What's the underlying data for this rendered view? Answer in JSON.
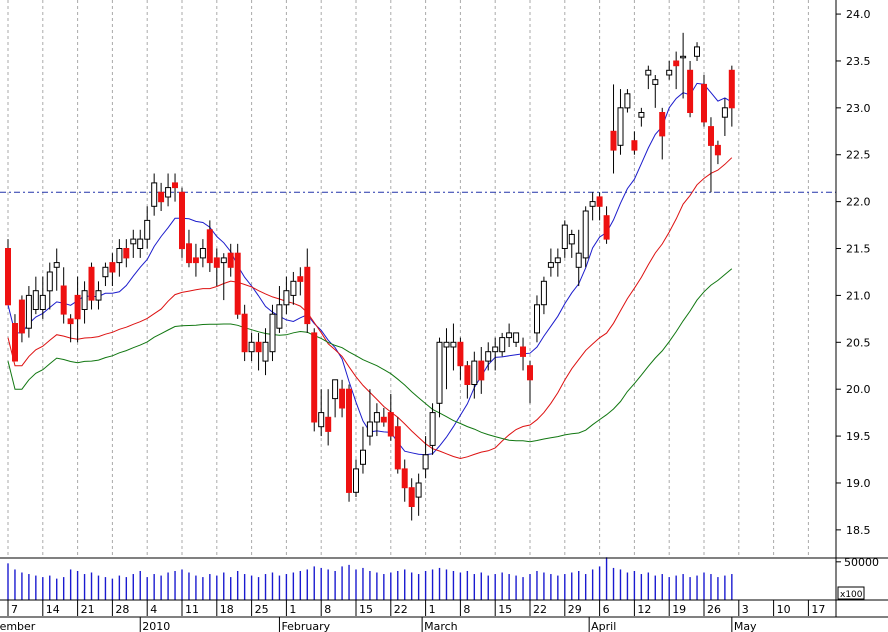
{
  "chart_data": {
    "type": "candlestick",
    "price_axis": {
      "ticks": [
        "18.5",
        "19.0",
        "19.5",
        "20.0",
        "20.5",
        "21.0",
        "21.5",
        "22.0",
        "22.5",
        "23.0",
        "23.5",
        "24.0"
      ],
      "range": [
        18.2,
        24.15
      ]
    },
    "volume_axis": {
      "tick_label": "50000",
      "multiplier_label": "x100",
      "max": 55000
    },
    "day_labels": [
      {
        "label": "7",
        "i": 0
      },
      {
        "label": "14",
        "i": 5
      },
      {
        "label": "21",
        "i": 10
      },
      {
        "label": "28",
        "i": 15
      },
      {
        "label": "4",
        "i": 20
      },
      {
        "label": "11",
        "i": 25
      },
      {
        "label": "18",
        "i": 30
      },
      {
        "label": "25",
        "i": 35
      },
      {
        "label": "1",
        "i": 40
      },
      {
        "label": "8",
        "i": 45
      },
      {
        "label": "15",
        "i": 50
      },
      {
        "label": "22",
        "i": 55
      },
      {
        "label": "1",
        "i": 60
      },
      {
        "label": "8",
        "i": 65
      },
      {
        "label": "15",
        "i": 70
      },
      {
        "label": "22",
        "i": 75
      },
      {
        "label": "29",
        "i": 80
      },
      {
        "label": "6",
        "i": 85
      },
      {
        "label": "12",
        "i": 90
      },
      {
        "label": "19",
        "i": 95
      },
      {
        "label": "26",
        "i": 100
      },
      {
        "label": "3",
        "i": 105
      },
      {
        "label": "10",
        "i": 110
      },
      {
        "label": "17",
        "i": 115
      }
    ],
    "month_labels": [
      {
        "label": "ember",
        "i": -1.5
      },
      {
        "label": "2010",
        "i": 19
      },
      {
        "label": "February",
        "i": 39
      },
      {
        "label": "March",
        "i": 59.5
      },
      {
        "label": "April",
        "i": 83.5
      },
      {
        "label": "May",
        "i": 104
      }
    ],
    "reference_line": {
      "value": 22.1,
      "color": "#2233aa"
    },
    "candles": [
      [
        21.5,
        20.9,
        21.6,
        20.9
      ],
      [
        20.7,
        20.3,
        20.8,
        20.3
      ],
      [
        20.95,
        20.6,
        21.0,
        20.5
      ],
      [
        20.65,
        21.0,
        21.1,
        20.55
      ],
      [
        20.85,
        21.05,
        21.2,
        20.8
      ],
      [
        20.85,
        21.0,
        21.2,
        20.75
      ],
      [
        21.05,
        21.25,
        21.35,
        20.85
      ],
      [
        21.3,
        21.35,
        21.5,
        21.05
      ],
      [
        21.1,
        20.8,
        21.3,
        20.7
      ],
      [
        20.75,
        20.7,
        20.8,
        20.5
      ],
      [
        21.0,
        20.75,
        21.2,
        20.5
      ],
      [
        20.85,
        21.05,
        21.15,
        20.7
      ],
      [
        21.3,
        20.95,
        21.35,
        20.85
      ],
      [
        20.95,
        21.05,
        21.15,
        20.85
      ],
      [
        21.2,
        21.3,
        21.35,
        21.1
      ],
      [
        21.35,
        21.25,
        21.45,
        21.1
      ],
      [
        21.35,
        21.5,
        21.6,
        21.2
      ],
      [
        21.5,
        21.4,
        21.6,
        21.3
      ],
      [
        21.55,
        21.6,
        21.7,
        21.4
      ],
      [
        21.5,
        21.6,
        21.7,
        21.4
      ],
      [
        21.6,
        21.8,
        21.95,
        21.5
      ],
      [
        21.95,
        22.2,
        22.3,
        21.85
      ],
      [
        22.1,
        22.0,
        22.2,
        21.9
      ],
      [
        22.05,
        22.15,
        22.3,
        21.95
      ],
      [
        22.2,
        22.15,
        22.3,
        22.0
      ],
      [
        22.1,
        21.5,
        22.15,
        21.4
      ],
      [
        21.55,
        21.35,
        21.7,
        21.3
      ],
      [
        21.4,
        21.35,
        21.55,
        21.2
      ],
      [
        21.4,
        21.5,
        21.6,
        21.3
      ],
      [
        21.7,
        21.35,
        21.8,
        21.25
      ],
      [
        21.4,
        21.3,
        21.5,
        21.1
      ],
      [
        21.35,
        21.4,
        21.45,
        20.95
      ],
      [
        21.45,
        21.3,
        21.55,
        21.2
      ],
      [
        21.45,
        20.8,
        21.55,
        20.75
      ],
      [
        20.8,
        20.4,
        20.9,
        20.3
      ],
      [
        20.4,
        20.5,
        20.6,
        20.3
      ],
      [
        20.5,
        20.4,
        20.6,
        20.2
      ],
      [
        20.3,
        20.5,
        20.65,
        20.15
      ],
      [
        20.4,
        20.8,
        20.9,
        20.3
      ],
      [
        20.65,
        20.9,
        21.1,
        20.6
      ],
      [
        20.9,
        21.05,
        21.2,
        20.8
      ],
      [
        21.0,
        21.15,
        21.25,
        20.9
      ],
      [
        21.2,
        21.15,
        21.3,
        21.0
      ],
      [
        21.3,
        20.7,
        21.5,
        20.6
      ],
      [
        20.6,
        19.65,
        20.65,
        19.55
      ],
      [
        19.6,
        19.75,
        20.0,
        19.5
      ],
      [
        19.7,
        19.55,
        20.0,
        19.4
      ],
      [
        19.9,
        20.1,
        20.1,
        19.7
      ],
      [
        20.0,
        19.8,
        20.1,
        19.7
      ],
      [
        20.0,
        18.9,
        20.05,
        18.8
      ],
      [
        18.9,
        19.15,
        19.25,
        18.85
      ],
      [
        19.2,
        19.35,
        19.6,
        19.1
      ],
      [
        19.5,
        19.65,
        20.0,
        19.4
      ],
      [
        19.65,
        19.75,
        19.85,
        19.5
      ],
      [
        19.7,
        19.65,
        19.8,
        19.6
      ],
      [
        19.75,
        19.5,
        19.95,
        19.45
      ],
      [
        19.6,
        19.15,
        19.7,
        19.1
      ],
      [
        19.15,
        18.95,
        19.25,
        18.8
      ],
      [
        18.95,
        18.75,
        19.05,
        18.6
      ],
      [
        18.85,
        19.0,
        19.1,
        18.65
      ],
      [
        19.15,
        19.3,
        19.5,
        19.05
      ],
      [
        19.4,
        19.75,
        19.85,
        19.3
      ],
      [
        19.85,
        20.5,
        20.55,
        19.7
      ],
      [
        20.45,
        20.5,
        20.65,
        20.0
      ],
      [
        20.45,
        20.5,
        20.7,
        20.2
      ],
      [
        20.5,
        20.25,
        20.55,
        20.1
      ],
      [
        20.25,
        20.05,
        20.3,
        19.9
      ],
      [
        20.05,
        20.3,
        20.4,
        19.9
      ],
      [
        20.3,
        20.1,
        20.45,
        19.95
      ],
      [
        20.3,
        20.4,
        20.5,
        20.2
      ],
      [
        20.4,
        20.45,
        20.55,
        20.2
      ],
      [
        20.4,
        20.55,
        20.6,
        20.35
      ],
      [
        20.55,
        20.6,
        20.7,
        20.45
      ],
      [
        20.5,
        20.6,
        20.6,
        20.45
      ],
      [
        20.45,
        20.35,
        20.55,
        20.2
      ],
      [
        20.25,
        20.1,
        20.3,
        19.85
      ],
      [
        20.6,
        20.9,
        21.0,
        20.5
      ],
      [
        20.9,
        21.15,
        21.2,
        20.8
      ],
      [
        21.3,
        21.35,
        21.5,
        21.2
      ],
      [
        21.35,
        21.4,
        21.5,
        21.2
      ],
      [
        21.5,
        21.75,
        21.8,
        21.4
      ],
      [
        21.55,
        21.65,
        21.7,
        21.4
      ],
      [
        21.3,
        21.45,
        21.7,
        21.1
      ],
      [
        21.4,
        21.9,
        21.95,
        21.3
      ],
      [
        21.95,
        22.0,
        22.1,
        21.8
      ],
      [
        22.05,
        21.95,
        22.1,
        21.8
      ],
      [
        21.85,
        21.6,
        21.95,
        21.55
      ],
      [
        22.75,
        22.55,
        23.25,
        22.3
      ],
      [
        22.6,
        23.0,
        23.2,
        22.5
      ],
      [
        23.0,
        23.15,
        23.2,
        22.95
      ],
      [
        22.65,
        22.55,
        22.75,
        22.5
      ],
      [
        22.9,
        22.95,
        23.0,
        22.8
      ],
      [
        23.35,
        23.4,
        23.45,
        23.2
      ],
      [
        23.25,
        23.3,
        23.35,
        23.0
      ],
      [
        22.95,
        22.7,
        23.0,
        22.45
      ],
      [
        23.35,
        23.4,
        23.5,
        23.3
      ],
      [
        23.5,
        23.45,
        23.6,
        23.2
      ],
      [
        23.55,
        23.55,
        23.8,
        23.1
      ],
      [
        23.4,
        22.95,
        23.5,
        22.9
      ],
      [
        23.55,
        23.65,
        23.7,
        23.5
      ],
      [
        23.25,
        22.85,
        23.35,
        22.8
      ],
      [
        22.8,
        22.6,
        22.9,
        22.1
      ],
      [
        22.6,
        22.5,
        22.65,
        22.4
      ],
      [
        22.9,
        23.0,
        23.1,
        22.7
      ],
      [
        23.4,
        23.0,
        23.45,
        22.8
      ]
    ],
    "volumes": [
      48000,
      40000,
      36000,
      34000,
      32000,
      30000,
      32000,
      28000,
      30000,
      40000,
      38000,
      34000,
      36000,
      32000,
      30000,
      28000,
      32000,
      30000,
      34000,
      38000,
      30000,
      34000,
      32000,
      36000,
      38000,
      40000,
      36000,
      32000,
      30000,
      34000,
      32000,
      36000,
      30000,
      38000,
      34000,
      32000,
      30000,
      34000,
      36000,
      32000,
      34000,
      36000,
      38000,
      40000,
      44000,
      42000,
      40000,
      38000,
      44000,
      46000,
      40000,
      42000,
      38000,
      36000,
      34000,
      36000,
      38000,
      40000,
      36000,
      34000,
      38000,
      40000,
      42000,
      40000,
      38000,
      36000,
      38000,
      34000,
      36000,
      32000,
      34000,
      36000,
      34000,
      32000,
      30000,
      34000,
      38000,
      36000,
      34000,
      32000,
      34000,
      36000,
      38000,
      34000,
      40000,
      44000,
      56000,
      42000,
      40000,
      36000,
      38000,
      34000,
      36000,
      32000,
      34000,
      30000,
      32000,
      34000,
      30000,
      32000,
      36000,
      34000,
      30000,
      32000,
      34000
    ],
    "colors": {
      "up": "#ffffff",
      "down": "#ee1111",
      "outline": "#000000",
      "ma_short": "#1c1ccc",
      "ma_mid": "#dd1111",
      "ma_long": "#117711",
      "volume": "#1a1ad0",
      "grid": "#aaaaaa"
    }
  }
}
